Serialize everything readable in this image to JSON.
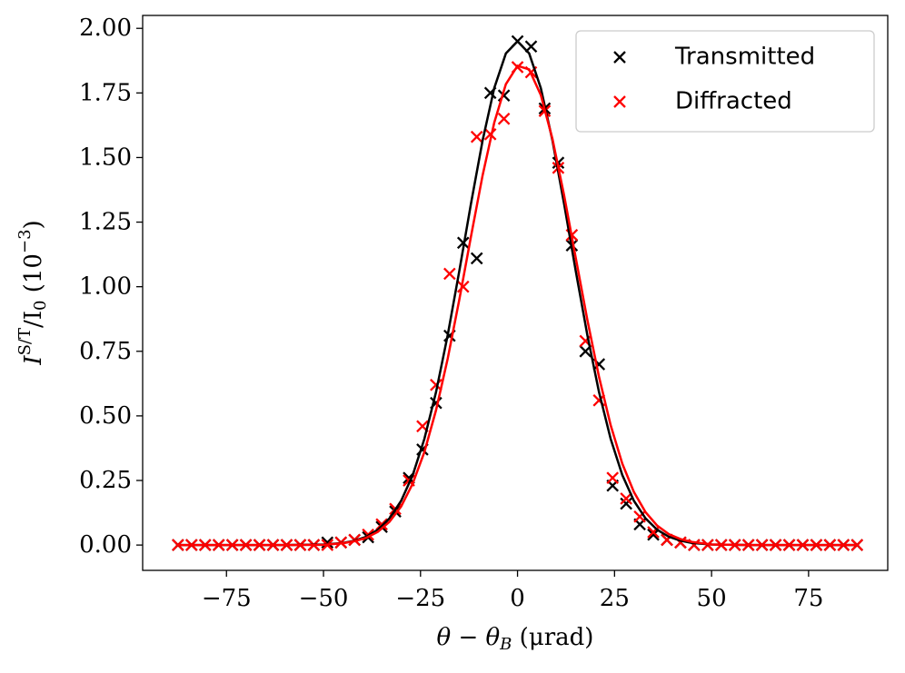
{
  "chart_data": {
    "type": "scatter",
    "xlabel": [
      {
        "text": "θ − θ"
      },
      {
        "text": "B",
        "sub": true
      },
      {
        "text": " (μrad)"
      }
    ],
    "ylabel": [
      {
        "text": "I"
      },
      {
        "text": "S/T",
        "sup": true
      },
      {
        "text": "/I"
      },
      {
        "text": "0",
        "sub": true
      },
      {
        "text": " (10"
      },
      {
        "text": "−3",
        "sup": true
      },
      {
        "text": ")"
      }
    ],
    "xlim": [
      -96.6,
      95.4
    ],
    "ylim": [
      -0.098,
      2.05
    ],
    "xticks": [
      {
        "value": -75,
        "label": "−75"
      },
      {
        "value": -50,
        "label": "−50"
      },
      {
        "value": -25,
        "label": "−25"
      },
      0,
      25,
      50,
      75
    ],
    "yticks": [
      {
        "value": 0,
        "label": "0.00"
      },
      {
        "value": 0.25,
        "label": "0.25"
      },
      {
        "value": 0.5,
        "label": "0.50"
      },
      {
        "value": 0.75,
        "label": "0.75"
      },
      {
        "value": 1,
        "label": "1.00"
      },
      {
        "value": 1.25,
        "label": "1.25"
      },
      {
        "value": 1.5,
        "label": "1.50"
      },
      {
        "value": 1.75,
        "label": "1.75"
      },
      {
        "value": 2,
        "label": "2.00"
      }
    ],
    "legend": "upper right",
    "series": [
      {
        "type": "scatter",
        "name": "Transmitted",
        "color": "#000000",
        "x": [
          -87.5,
          -84,
          -80.5,
          -77,
          -73.5,
          -70,
          -66.5,
          -63,
          -59.5,
          -56,
          -52.5,
          -49,
          -45.5,
          -42,
          -38.5,
          -35,
          -31.5,
          -28,
          -24.5,
          -21,
          -17.5,
          -14,
          -10.5,
          -7,
          -3.5,
          0,
          3.5,
          7,
          10.5,
          14,
          17.5,
          21,
          24.5,
          28,
          31.5,
          35,
          38.5,
          42,
          45.5,
          49,
          52.5,
          56,
          59.5,
          63,
          66.5,
          70,
          73.5,
          77,
          80.5,
          84,
          87.5
        ],
        "values": [
          0,
          0,
          0,
          0,
          0,
          0,
          0,
          0,
          0,
          0,
          0,
          0.01,
          0.01,
          0.02,
          0.03,
          0.07,
          0.13,
          0.26,
          0.37,
          0.55,
          0.81,
          1.17,
          1.11,
          1.75,
          1.74,
          1.95,
          1.93,
          1.69,
          1.48,
          1.16,
          0.75,
          0.7,
          0.23,
          0.16,
          0.08,
          0.04,
          0.02,
          0.01,
          0,
          0,
          0,
          0,
          0,
          0,
          0,
          0,
          0,
          0,
          0,
          0,
          0
        ]
      },
      {
        "type": "scatter",
        "name": "Diffracted",
        "color": "#ff0000",
        "x": [
          -87.5,
          -84,
          -80.5,
          -77,
          -73.5,
          -70,
          -66.5,
          -63,
          -59.5,
          -56,
          -52.5,
          -49,
          -45.5,
          -42,
          -38.5,
          -35,
          -31.5,
          -28,
          -24.5,
          -21,
          -17.5,
          -14,
          -10.5,
          -7,
          -3.5,
          0,
          3.5,
          7,
          10.5,
          14,
          17.5,
          21,
          24.5,
          28,
          31.5,
          35,
          38.5,
          42,
          45.5,
          49,
          52.5,
          56,
          59.5,
          63,
          66.5,
          70,
          73.5,
          77,
          80.5,
          84,
          87.5
        ],
        "values": [
          0,
          0,
          0,
          0,
          0,
          0,
          0,
          0,
          0,
          0,
          0,
          0,
          0.01,
          0.02,
          0.04,
          0.08,
          0.14,
          0.25,
          0.46,
          0.62,
          1.05,
          1,
          1.58,
          1.59,
          1.65,
          1.85,
          1.83,
          1.68,
          1.46,
          1.2,
          0.79,
          0.56,
          0.26,
          0.18,
          0.11,
          0.05,
          0.02,
          0.01,
          0,
          0,
          0,
          0,
          0,
          0,
          0,
          0,
          0,
          0,
          0,
          0,
          0
        ]
      },
      {
        "type": "line",
        "color": "#000000",
        "x": [
          -88,
          -80,
          -70,
          -60,
          -50,
          -45,
          -42,
          -39,
          -36,
          -33,
          -30,
          -27,
          -24,
          -21,
          -18,
          -15,
          -12,
          -9,
          -6,
          -3,
          0,
          3,
          6,
          9,
          12,
          15,
          18,
          21,
          24,
          27,
          30,
          33,
          36,
          39,
          42,
          45,
          50,
          60,
          70,
          80,
          88
        ],
        "values": [
          0,
          0,
          0,
          0,
          0.002,
          0.008,
          0.017,
          0.032,
          0.059,
          0.103,
          0.171,
          0.271,
          0.411,
          0.592,
          0.812,
          1.061,
          1.321,
          1.566,
          1.769,
          1.903,
          1.95,
          1.903,
          1.769,
          1.566,
          1.321,
          1.061,
          0.812,
          0.592,
          0.411,
          0.271,
          0.171,
          0.103,
          0.059,
          0.032,
          0.017,
          0.008,
          0.002,
          0,
          0,
          0,
          0
        ]
      },
      {
        "type": "line",
        "color": "#ff0000",
        "x": [
          -88,
          -80,
          -70,
          -60,
          -50,
          -45,
          -42,
          -39,
          -36,
          -33,
          -30,
          -27,
          -24,
          -21,
          -18,
          -15,
          -12,
          -9,
          -6,
          -3,
          0,
          3,
          6,
          9,
          12,
          15,
          18,
          21,
          24,
          27,
          30,
          33,
          36,
          39,
          42,
          45,
          50,
          60,
          70,
          80,
          88
        ],
        "values": [
          0,
          0,
          0,
          0,
          0.001,
          0.007,
          0.015,
          0.028,
          0.051,
          0.09,
          0.149,
          0.238,
          0.36,
          0.522,
          0.721,
          0.95,
          1.194,
          1.431,
          1.635,
          1.784,
          1.855,
          1.841,
          1.742,
          1.572,
          1.354,
          1.112,
          0.871,
          0.651,
          0.464,
          0.315,
          0.205,
          0.127,
          0.075,
          0.042,
          0.023,
          0.012,
          0.002,
          0,
          0,
          0,
          0
        ]
      }
    ]
  }
}
